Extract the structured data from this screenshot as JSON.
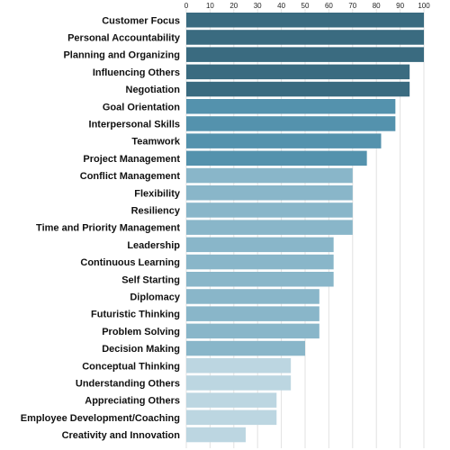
{
  "chart_data": {
    "type": "bar",
    "orientation": "horizontal",
    "title": "",
    "xlabel": "",
    "ylabel": "",
    "xlim": [
      0,
      100
    ],
    "ticks": [
      0,
      10,
      20,
      30,
      40,
      50,
      60,
      70,
      80,
      90,
      100
    ],
    "tick_labels": [
      "0",
      "10",
      "20",
      "30",
      "40",
      "50",
      "60",
      "70",
      "80",
      "90",
      "100"
    ],
    "axis_position": "top",
    "grid": true,
    "legend": "none",
    "categories": [
      "Customer Focus",
      "Personal Accountability",
      "Planning and Organizing",
      "Influencing Others",
      "Negotiation",
      "Goal Orientation",
      "Interpersonal Skills",
      "Teamwork",
      "Project Management",
      "Conflict Management",
      "Flexibility",
      "Resiliency",
      "Time and Priority Management",
      "Leadership",
      "Continuous Learning",
      "Self Starting",
      "Diplomacy",
      "Futuristic Thinking",
      "Problem Solving",
      "Decision Making",
      "Conceptual Thinking",
      "Understanding Others",
      "Appreciating Others",
      "Employee Development/Coaching",
      "Creativity and Innovation"
    ],
    "values": [
      100,
      100,
      100,
      94,
      94,
      88,
      88,
      82,
      76,
      70,
      70,
      70,
      70,
      62,
      62,
      62,
      56,
      56,
      56,
      50,
      44,
      44,
      38,
      38,
      25
    ],
    "colors": [
      "#3a6b80",
      "#3a6b80",
      "#3a6b80",
      "#3a6b80",
      "#3a6b80",
      "#5492ad",
      "#5492ad",
      "#5492ad",
      "#5492ad",
      "#89b6c9",
      "#89b6c9",
      "#89b6c9",
      "#89b6c9",
      "#89b6c9",
      "#89b6c9",
      "#89b6c9",
      "#89b6c9",
      "#89b6c9",
      "#89b6c9",
      "#89b6c9",
      "#bcd6e1",
      "#bcd6e1",
      "#bcd6e1",
      "#bcd6e1",
      "#bcd6e1"
    ]
  }
}
